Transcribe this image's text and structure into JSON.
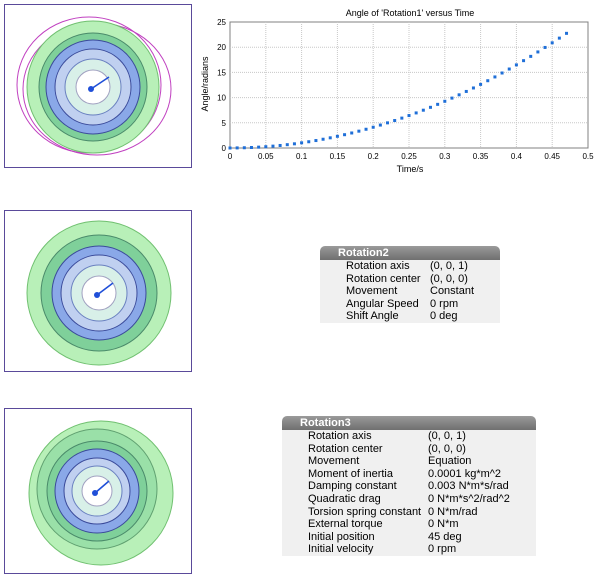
{
  "chart_data": {
    "type": "scatter",
    "title": "Angle of 'Rotation1' versus Time",
    "xlabel": "Time/s",
    "ylabel": "Angle/radians",
    "xlim": [
      0,
      0.5
    ],
    "ylim": [
      0,
      25
    ],
    "x_ticks": [
      "0",
      "0.05",
      "0.1",
      "0.15",
      "0.2",
      "0.25",
      "0.3",
      "0.35",
      "0.4",
      "0.45",
      "0.5"
    ],
    "y_ticks": [
      "0",
      "5",
      "10",
      "15",
      "20",
      "25"
    ],
    "grid": true,
    "color": "#1f6fd8",
    "series": [
      {
        "x": [
          0,
          0.01,
          0.02,
          0.03,
          0.04,
          0.05,
          0.06,
          0.07,
          0.08,
          0.09,
          0.1,
          0.11,
          0.12,
          0.13,
          0.14,
          0.15,
          0.16,
          0.17,
          0.18,
          0.19,
          0.2,
          0.21,
          0.22,
          0.23,
          0.24,
          0.25,
          0.26,
          0.27,
          0.28,
          0.29,
          0.3,
          0.31,
          0.32,
          0.33,
          0.34,
          0.35,
          0.36,
          0.37,
          0.38,
          0.39,
          0.4,
          0.41,
          0.42,
          0.43,
          0.44,
          0.45,
          0.46,
          0.47
        ],
        "y": [
          0,
          0.02,
          0.05,
          0.1,
          0.17,
          0.26,
          0.37,
          0.5,
          0.66,
          0.83,
          1.03,
          1.24,
          1.48,
          1.74,
          2.02,
          2.32,
          2.64,
          2.98,
          3.34,
          3.72,
          4.12,
          4.55,
          4.99,
          5.45,
          5.93,
          6.44,
          6.96,
          7.5,
          8.07,
          8.66,
          9.27,
          9.9,
          10.55,
          11.22,
          11.91,
          12.62,
          13.35,
          14.1,
          14.88,
          15.67,
          16.49,
          17.33,
          18.18,
          19.06,
          19.95,
          20.87,
          21.8,
          22.75
        ]
      }
    ]
  },
  "panels": [
    {
      "title": "Rotation2",
      "rows": [
        {
          "key": "Rotation axis",
          "value": "(0, 0, 1)"
        },
        {
          "key": "Rotation center",
          "value": "(0, 0, 0)"
        },
        {
          "key": "Movement",
          "value": "Constant"
        },
        {
          "key": "Angular Speed",
          "value": "0 rpm"
        },
        {
          "key": "Shift Angle",
          "value": "0 deg"
        }
      ]
    },
    {
      "title": "Rotation3",
      "rows": [
        {
          "key": "Rotation axis",
          "value": "(0, 0, 1)"
        },
        {
          "key": "Rotation center",
          "value": "(0, 0, 0)"
        },
        {
          "key": "Movement",
          "value": "Equation"
        },
        {
          "key": "Moment of inertia",
          "value": "0.0001 kg*m^2"
        },
        {
          "key": "Damping constant",
          "value": "0.003 N*m*s/rad"
        },
        {
          "key": "Quadratic drag",
          "value": "0 N*m*s^2/rad^2"
        },
        {
          "key": "Torsion spring constant",
          "value": "0 N*m/rad"
        },
        {
          "key": "External torque",
          "value": "0 N*m"
        },
        {
          "key": "Initial position",
          "value": "45 deg"
        },
        {
          "key": "Initial velocity",
          "value": "0 rpm"
        }
      ]
    }
  ],
  "colors": {
    "frame": "#5a4a9a",
    "stator_green": "#a8eea8",
    "rotor_blue": "#5f7fd8",
    "pointer": "#1f4fd8",
    "panel_header": "#7a7a7a",
    "panel_body": "#f0f0f0"
  }
}
